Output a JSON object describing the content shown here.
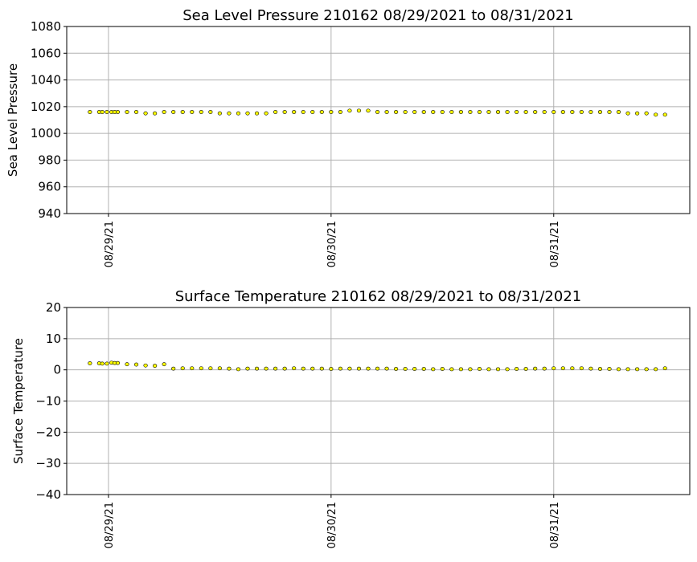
{
  "chart_data": [
    {
      "type": "scatter",
      "title": "Sea Level Pressure 210162  08/29/2021 to 08/31/2021",
      "ylabel": "Sea Level Pressure",
      "xlabel": "",
      "ylim": [
        940,
        1080
      ],
      "yticks": [
        940,
        960,
        980,
        1000,
        1020,
        1040,
        1060,
        1080
      ],
      "ytick_labels": [
        "940",
        "960",
        "980",
        "1000",
        "1020",
        "1040",
        "1060",
        "1080"
      ],
      "xlim": [
        "08/28/2021 19:30",
        "08/31/2021 14:40"
      ],
      "xticks": [
        "08/29/2021 00:00",
        "08/30/2021 00:00",
        "08/31/2021 00:00"
      ],
      "xtick_labels": [
        "08/29/21",
        "08/30/21",
        "08/31/21"
      ],
      "grid": true,
      "marker_color": "#ffff00",
      "x": [
        "08/28/2021 22:00",
        "08/28/2021 23:00",
        "08/28/2021 23:20",
        "08/28/2021 23:50",
        "08/29/2021 00:20",
        "08/29/2021 00:40",
        "08/29/2021 01:00",
        "08/29/2021 02:00",
        "08/29/2021 03:00",
        "08/29/2021 04:00",
        "08/29/2021 05:00",
        "08/29/2021 06:00",
        "08/29/2021 07:00",
        "08/29/2021 08:00",
        "08/29/2021 09:00",
        "08/29/2021 10:00",
        "08/29/2021 11:00",
        "08/29/2021 12:00",
        "08/29/2021 13:00",
        "08/29/2021 14:00",
        "08/29/2021 15:00",
        "08/29/2021 16:00",
        "08/29/2021 17:00",
        "08/29/2021 18:00",
        "08/29/2021 19:00",
        "08/29/2021 20:00",
        "08/29/2021 21:00",
        "08/29/2021 22:00",
        "08/29/2021 23:00",
        "08/30/2021 00:00",
        "08/30/2021 01:00",
        "08/30/2021 02:00",
        "08/30/2021 03:00",
        "08/30/2021 04:00",
        "08/30/2021 05:00",
        "08/30/2021 06:00",
        "08/30/2021 07:00",
        "08/30/2021 08:00",
        "08/30/2021 09:00",
        "08/30/2021 10:00",
        "08/30/2021 11:00",
        "08/30/2021 12:00",
        "08/30/2021 13:00",
        "08/30/2021 14:00",
        "08/30/2021 15:00",
        "08/30/2021 16:00",
        "08/30/2021 17:00",
        "08/30/2021 18:00",
        "08/30/2021 19:00",
        "08/30/2021 20:00",
        "08/30/2021 21:00",
        "08/30/2021 22:00",
        "08/30/2021 23:00",
        "08/31/2021 00:00",
        "08/31/2021 01:00",
        "08/31/2021 02:00",
        "08/31/2021 03:00",
        "08/31/2021 04:00",
        "08/31/2021 05:00",
        "08/31/2021 06:00",
        "08/31/2021 07:00",
        "08/31/2021 08:00",
        "08/31/2021 09:00",
        "08/31/2021 10:00",
        "08/31/2021 11:00",
        "08/31/2021 12:00"
      ],
      "y": [
        1016,
        1016,
        1016,
        1016,
        1016,
        1016,
        1016,
        1016,
        1016,
        1015,
        1015,
        1016,
        1016,
        1016,
        1016,
        1016,
        1016,
        1015,
        1015,
        1015,
        1015,
        1015,
        1015,
        1016,
        1016,
        1016,
        1016,
        1016,
        1016,
        1016,
        1016,
        1017,
        1017,
        1017,
        1016,
        1016,
        1016,
        1016,
        1016,
        1016,
        1016,
        1016,
        1016,
        1016,
        1016,
        1016,
        1016,
        1016,
        1016,
        1016,
        1016,
        1016,
        1016,
        1016,
        1016,
        1016,
        1016,
        1016,
        1016,
        1016,
        1016,
        1015,
        1015,
        1015,
        1014,
        1014
      ]
    },
    {
      "type": "scatter",
      "title": "Surface Temperature 210162  08/29/2021 to 08/31/2021",
      "ylabel": "Surface Temperature",
      "xlabel": "",
      "ylim": [
        -40,
        20
      ],
      "yticks": [
        -40,
        -30,
        -20,
        -10,
        0,
        10,
        20
      ],
      "ytick_labels": [
        "−40",
        "−30",
        "−20",
        "−10",
        "0",
        "10",
        "20"
      ],
      "xlim": [
        "08/28/2021 19:30",
        "08/31/2021 14:40"
      ],
      "xticks": [
        "08/29/2021 00:00",
        "08/30/2021 00:00",
        "08/31/2021 00:00"
      ],
      "xtick_labels": [
        "08/29/21",
        "08/30/21",
        "08/31/21"
      ],
      "grid": true,
      "marker_color": "#ffff00",
      "x": [
        "08/28/2021 22:00",
        "08/28/2021 23:00",
        "08/28/2021 23:20",
        "08/28/2021 23:50",
        "08/29/2021 00:20",
        "08/29/2021 00:40",
        "08/29/2021 01:00",
        "08/29/2021 02:00",
        "08/29/2021 03:00",
        "08/29/2021 04:00",
        "08/29/2021 05:00",
        "08/29/2021 06:00",
        "08/29/2021 07:00",
        "08/29/2021 08:00",
        "08/29/2021 09:00",
        "08/29/2021 10:00",
        "08/29/2021 11:00",
        "08/29/2021 12:00",
        "08/29/2021 13:00",
        "08/29/2021 14:00",
        "08/29/2021 15:00",
        "08/29/2021 16:00",
        "08/29/2021 17:00",
        "08/29/2021 18:00",
        "08/29/2021 19:00",
        "08/29/2021 20:00",
        "08/29/2021 21:00",
        "08/29/2021 22:00",
        "08/29/2021 23:00",
        "08/30/2021 00:00",
        "08/30/2021 01:00",
        "08/30/2021 02:00",
        "08/30/2021 03:00",
        "08/30/2021 04:00",
        "08/30/2021 05:00",
        "08/30/2021 06:00",
        "08/30/2021 07:00",
        "08/30/2021 08:00",
        "08/30/2021 09:00",
        "08/30/2021 10:00",
        "08/30/2021 11:00",
        "08/30/2021 12:00",
        "08/30/2021 13:00",
        "08/30/2021 14:00",
        "08/30/2021 15:00",
        "08/30/2021 16:00",
        "08/30/2021 17:00",
        "08/30/2021 18:00",
        "08/30/2021 19:00",
        "08/30/2021 20:00",
        "08/30/2021 21:00",
        "08/30/2021 22:00",
        "08/30/2021 23:00",
        "08/31/2021 00:00",
        "08/31/2021 01:00",
        "08/31/2021 02:00",
        "08/31/2021 03:00",
        "08/31/2021 04:00",
        "08/31/2021 05:00",
        "08/31/2021 06:00",
        "08/31/2021 07:00",
        "08/31/2021 08:00",
        "08/31/2021 09:00",
        "08/31/2021 10:00",
        "08/31/2021 11:00",
        "08/31/2021 12:00"
      ],
      "y": [
        2.1,
        2.1,
        2.0,
        2.0,
        2.3,
        2.2,
        2.2,
        1.8,
        1.7,
        1.4,
        1.3,
        1.8,
        0.4,
        0.5,
        0.5,
        0.5,
        0.5,
        0.5,
        0.4,
        0.2,
        0.4,
        0.4,
        0.4,
        0.4,
        0.4,
        0.5,
        0.4,
        0.4,
        0.4,
        0.3,
        0.4,
        0.4,
        0.4,
        0.4,
        0.4,
        0.4,
        0.3,
        0.3,
        0.3,
        0.3,
        0.2,
        0.3,
        0.2,
        0.2,
        0.2,
        0.3,
        0.2,
        0.2,
        0.2,
        0.3,
        0.3,
        0.4,
        0.4,
        0.5,
        0.5,
        0.5,
        0.5,
        0.4,
        0.3,
        0.3,
        0.2,
        0.2,
        0.2,
        0.2,
        0.2,
        0.5
      ]
    }
  ]
}
